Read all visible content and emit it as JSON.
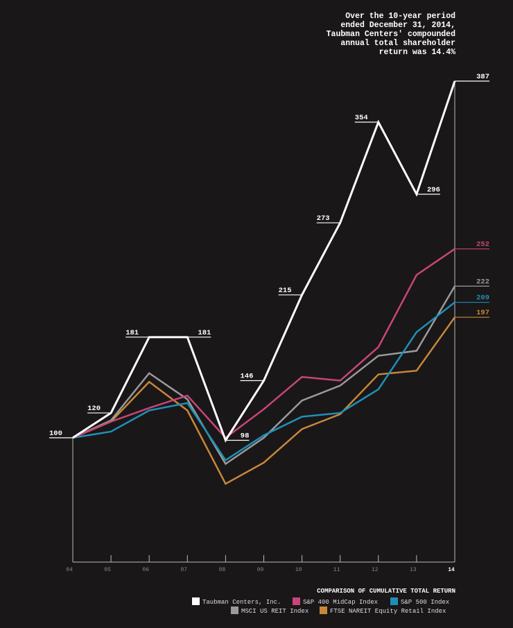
{
  "chart_data": {
    "type": "line",
    "annotation": [
      "Over the 10-year period",
      "ended December 31, 2014,",
      "Taubman Centers' compounded",
      "annual total shareholder",
      "return was 14.4%"
    ],
    "title": "COMPARISON OF CUMULATIVE TOTAL RETURN",
    "categories": [
      "04",
      "05",
      "06",
      "07",
      "08",
      "09",
      "10",
      "11",
      "12",
      "13",
      "14"
    ],
    "ylim": [
      0,
      400
    ],
    "series": [
      {
        "name": "Taubman Centers, Inc.",
        "color": "#ffffff",
        "values": [
          100,
          120,
          181,
          181,
          98,
          146,
          215,
          273,
          354,
          296,
          387
        ]
      },
      {
        "name": "S&P 400 MidCap Index",
        "color": "#c8457a",
        "values": [
          100,
          113,
          124,
          134,
          100,
          123,
          149,
          146,
          173,
          231,
          252
        ]
      },
      {
        "name": "S&P 500 Index",
        "color": "#1e90b8",
        "values": [
          100,
          105,
          122,
          128,
          82,
          102,
          117,
          120,
          139,
          185,
          209
        ]
      },
      {
        "name": "MSCI US REIT Index",
        "color": "#9a9a9a",
        "values": [
          100,
          114,
          152,
          131,
          79,
          100,
          130,
          142,
          166,
          170,
          222
        ]
      },
      {
        "name": "FTSE NAREIT Equity Retail Index",
        "color": "#c8883a",
        "values": [
          100,
          113,
          145,
          122,
          63,
          80,
          107,
          119,
          151,
          154,
          197
        ]
      }
    ]
  }
}
